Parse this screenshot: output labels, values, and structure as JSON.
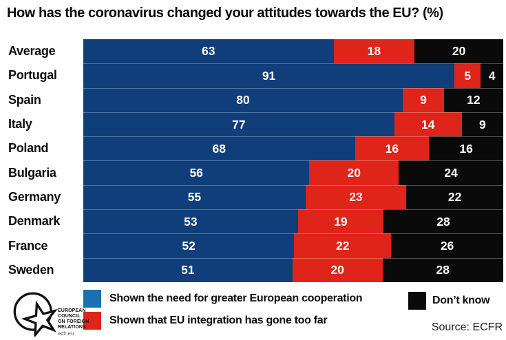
{
  "title": "How has the coronavirus changed your attitudes towards the EU? (%)",
  "chart_data": {
    "type": "bar",
    "orientation": "horizontal",
    "stacked": true,
    "unit": "%",
    "title": "How has the coronavirus changed your attitudes towards the EU? (%)",
    "categories": [
      "Average",
      "Portugal",
      "Spain",
      "Italy",
      "Poland",
      "Bulgaria",
      "Germany",
      "Denmark",
      "France",
      "Sweden"
    ],
    "series": [
      {
        "key": "cooperation",
        "name": "Shown the need for greater European cooperation",
        "color": "#0f3e7b",
        "values": [
          63,
          91,
          80,
          77,
          68,
          56,
          55,
          53,
          52,
          51
        ]
      },
      {
        "key": "too-far",
        "name": "Shown that EU integration has gone too far",
        "color": "#df2419",
        "values": [
          18,
          5,
          9,
          14,
          16,
          20,
          23,
          19,
          22,
          20
        ]
      },
      {
        "key": "dont-know",
        "name": "Don’t know",
        "color": "#0a0a0a",
        "values": [
          20,
          4,
          12,
          9,
          16,
          24,
          22,
          28,
          26,
          28
        ]
      }
    ],
    "xlim": [
      0,
      100
    ],
    "value_labels": "inside-white",
    "legend_position": "bottom",
    "grid": false
  },
  "legend": {
    "items": [
      {
        "key": "cooperation",
        "label": "Shown the need for greater European cooperation",
        "swatch_color": "#1b70b2"
      },
      {
        "key": "too-far",
        "label": "Shown that EU integration has gone too far",
        "swatch_color": "#df2419"
      },
      {
        "key": "dont-know",
        "label": "Don’t know",
        "swatch_color": "#0a0a0a"
      }
    ]
  },
  "source": "Source: ECFR",
  "logo": {
    "org_name_lines": [
      "EUROPEAN",
      "COUNCIL",
      "ON FOREIGN",
      "RELATIONS"
    ],
    "website": "ecfr.eu"
  }
}
